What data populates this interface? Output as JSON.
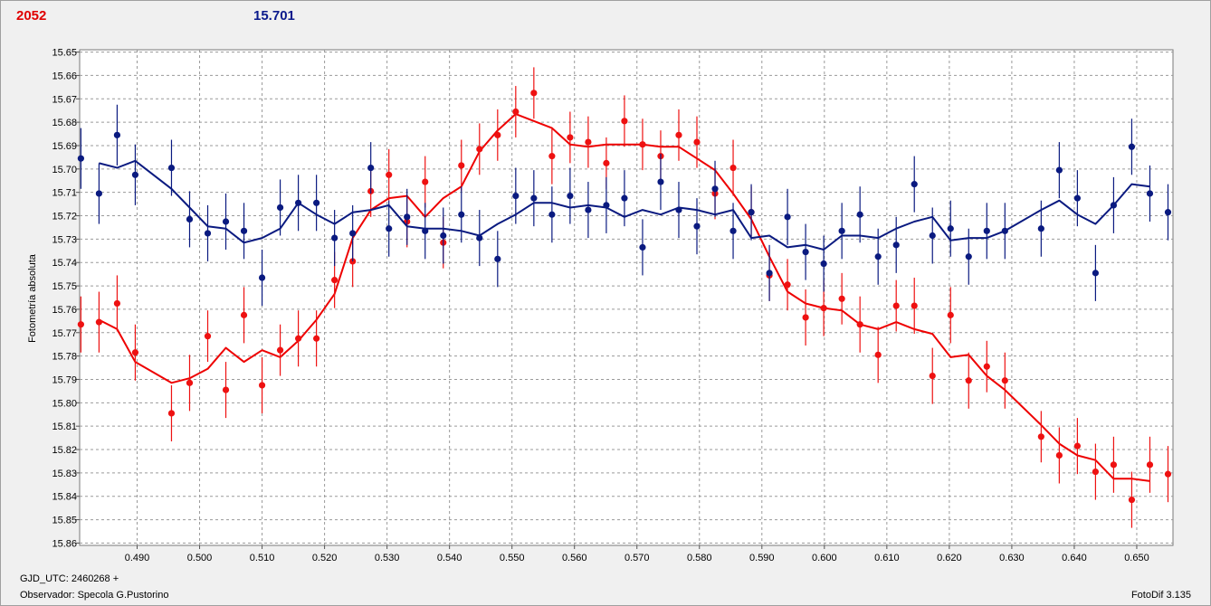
{
  "header": {
    "object_id": "2052",
    "magnitude": "15.701"
  },
  "footer": {
    "epoch_label": "GJD_UTC: 2460268 +",
    "observer_label": "Observador: Specola G.Pustorino",
    "software_label": "FotoDif 3.135"
  },
  "colors": {
    "red_series": "#ee1111",
    "blue_series": "#0a1a80",
    "grid": "#9a9a9a"
  },
  "chart_data": {
    "type": "scatter",
    "ylabel": "Fotometría absoluta",
    "xlabel": "",
    "xlim": [
      0.4808,
      0.6558
    ],
    "ylim": [
      15.649,
      15.861
    ],
    "y_inverted": true,
    "grid": true,
    "x_ticks": [
      "0.490",
      "0.500",
      "0.510",
      "0.520",
      "0.530",
      "0.540",
      "0.550",
      "0.560",
      "0.570",
      "0.580",
      "0.590",
      "0.600",
      "0.610",
      "0.620",
      "0.630",
      "0.640",
      "0.650"
    ],
    "y_ticks": [
      "15.65",
      "15.66",
      "15.67",
      "15.68",
      "15.69",
      "15.70",
      "15.71",
      "15.72",
      "15.73",
      "15.74",
      "15.75",
      "15.76",
      "15.77",
      "15.78",
      "15.79",
      "15.80",
      "15.81",
      "15.82",
      "15.83",
      "15.84",
      "15.85",
      "15.86"
    ],
    "series": [
      {
        "color": "red",
        "x": [
          0.481,
          0.4839,
          0.4868,
          0.4897,
          0.4955,
          0.4984,
          0.5013,
          0.5042,
          0.5071,
          0.51,
          0.5129,
          0.5158,
          0.5187,
          0.5216,
          0.5245,
          0.5274,
          0.5303,
          0.5332,
          0.5361,
          0.539,
          0.5419,
          0.5448,
          0.5477,
          0.5506,
          0.5535,
          0.5564,
          0.5593,
          0.5622,
          0.5651,
          0.568,
          0.5709,
          0.5738,
          0.5767,
          0.5796,
          0.5825,
          0.5854,
          0.5883,
          0.5912,
          0.5941,
          0.597,
          0.5999,
          0.6028,
          0.6057,
          0.6086,
          0.6115,
          0.6144,
          0.6173,
          0.6202,
          0.6231,
          0.626,
          0.6289,
          0.6347,
          0.6376,
          0.6405,
          0.6434,
          0.6463,
          0.6492,
          0.6521,
          0.655
        ],
        "y": [
          15.7665,
          15.7655,
          15.7575,
          15.7785,
          15.8045,
          15.7915,
          15.7715,
          15.7945,
          15.7625,
          15.7925,
          15.7775,
          15.7725,
          15.7725,
          15.7475,
          15.7395,
          15.7095,
          15.7025,
          15.7225,
          15.7055,
          15.7315,
          15.6985,
          15.6915,
          15.6855,
          15.6755,
          15.6675,
          15.6945,
          15.6865,
          15.6885,
          15.6975,
          15.6795,
          15.6895,
          15.6945,
          15.6855,
          15.6885,
          15.7105,
          15.6995,
          15.7185,
          15.7455,
          15.7495,
          15.7635,
          15.7595,
          15.7555,
          15.7665,
          15.7795,
          15.7585,
          15.7585,
          15.7885,
          15.7625,
          15.7905,
          15.7845,
          15.7905,
          15.8145,
          15.8225,
          15.8185,
          15.8295,
          15.8265,
          15.8415,
          15.8265,
          15.8305
        ],
        "err": [
          0.012,
          0.013,
          0.012,
          0.012,
          0.012,
          0.012,
          0.011,
          0.012,
          0.012,
          0.012,
          0.011,
          0.012,
          0.012,
          0.012,
          0.011,
          0.011,
          0.011,
          0.011,
          0.011,
          0.011,
          0.011,
          0.011,
          0.011,
          0.011,
          0.011,
          0.012,
          0.011,
          0.011,
          0.011,
          0.011,
          0.011,
          0.011,
          0.011,
          0.011,
          0.011,
          0.012,
          0.011,
          0.011,
          0.011,
          0.012,
          0.012,
          0.011,
          0.012,
          0.012,
          0.011,
          0.012,
          0.012,
          0.012,
          0.012,
          0.011,
          0.012,
          0.011,
          0.012,
          0.012,
          0.012,
          0.012,
          0.012,
          0.012,
          0.012
        ],
        "smooth": [
          null,
          15.7645,
          15.7685,
          15.7825,
          15.7915,
          15.7895,
          15.7855,
          15.7765,
          15.7825,
          15.7775,
          15.7805,
          15.7735,
          15.7645,
          15.7535,
          15.7295,
          15.7175,
          15.7125,
          15.7115,
          15.7205,
          15.7125,
          15.7075,
          15.6925,
          15.6835,
          15.6765,
          15.6795,
          15.6825,
          15.6895,
          15.6905,
          15.6895,
          15.6895,
          15.6895,
          15.6905,
          15.6905,
          15.6955,
          15.7005,
          15.7105,
          15.7215,
          15.7375,
          15.7525,
          15.7575,
          15.7595,
          15.7605,
          15.7665,
          15.7685,
          15.7655,
          15.7685,
          15.7705,
          15.7805,
          15.7795,
          15.7885,
          15.7945,
          15.8095,
          15.8175,
          15.8225,
          15.8245,
          15.8325,
          15.8325,
          15.8335,
          null
        ]
      },
      {
        "color": "blue",
        "x": [
          0.481,
          0.4839,
          0.4868,
          0.4897,
          0.4955,
          0.4984,
          0.5013,
          0.5042,
          0.5071,
          0.51,
          0.5129,
          0.5158,
          0.5187,
          0.5216,
          0.5245,
          0.5274,
          0.5303,
          0.5332,
          0.5361,
          0.539,
          0.5419,
          0.5448,
          0.5477,
          0.5506,
          0.5535,
          0.5564,
          0.5593,
          0.5622,
          0.5651,
          0.568,
          0.5709,
          0.5738,
          0.5767,
          0.5796,
          0.5825,
          0.5854,
          0.5883,
          0.5912,
          0.5941,
          0.597,
          0.5999,
          0.6028,
          0.6057,
          0.6086,
          0.6115,
          0.6144,
          0.6173,
          0.6202,
          0.6231,
          0.626,
          0.6289,
          0.6347,
          0.6376,
          0.6405,
          0.6434,
          0.6463,
          0.6492,
          0.6521,
          0.655
        ],
        "y": [
          15.6955,
          15.7105,
          15.6855,
          15.7025,
          15.6995,
          15.7215,
          15.7275,
          15.7225,
          15.7265,
          15.7465,
          15.7165,
          15.7145,
          15.7145,
          15.7295,
          15.7275,
          15.6995,
          15.7255,
          15.7205,
          15.7265,
          15.7285,
          15.7195,
          15.7295,
          15.7385,
          15.7115,
          15.7125,
          15.7195,
          15.7115,
          15.7175,
          15.7155,
          15.7125,
          15.7335,
          15.7055,
          15.7175,
          15.7245,
          15.7085,
          15.7265,
          15.7185,
          15.7445,
          15.7205,
          15.7355,
          15.7405,
          15.7265,
          15.7195,
          15.7375,
          15.7325,
          15.7065,
          15.7285,
          15.7255,
          15.7375,
          15.7265,
          15.7265,
          15.7255,
          15.7005,
          15.7125,
          15.7445,
          15.7155,
          15.6905,
          15.7105,
          15.7185
        ],
        "err": [
          0.013,
          0.013,
          0.013,
          0.013,
          0.012,
          0.012,
          0.012,
          0.012,
          0.012,
          0.012,
          0.012,
          0.012,
          0.012,
          0.012,
          0.012,
          0.011,
          0.012,
          0.012,
          0.012,
          0.012,
          0.012,
          0.012,
          0.012,
          0.012,
          0.012,
          0.012,
          0.012,
          0.012,
          0.012,
          0.012,
          0.012,
          0.012,
          0.012,
          0.012,
          0.012,
          0.012,
          0.012,
          0.012,
          0.012,
          0.012,
          0.012,
          0.012,
          0.012,
          0.012,
          0.012,
          0.012,
          0.012,
          0.012,
          0.012,
          0.012,
          0.012,
          0.012,
          0.012,
          0.012,
          0.012,
          0.012,
          0.012,
          0.012,
          0.012
        ],
        "smooth": [
          null,
          15.6975,
          15.6995,
          15.6965,
          15.7085,
          15.7165,
          15.7245,
          15.7255,
          15.7315,
          15.7295,
          15.7255,
          15.7145,
          15.7195,
          15.7235,
          15.7185,
          15.7175,
          15.7155,
          15.7245,
          15.7255,
          15.7255,
          15.7265,
          15.7285,
          15.7235,
          15.7195,
          15.7145,
          15.7145,
          15.7165,
          15.7155,
          15.7165,
          15.7205,
          15.7175,
          15.7195,
          15.7165,
          15.7175,
          15.7195,
          15.7175,
          15.7295,
          15.7285,
          15.7335,
          15.7325,
          15.7345,
          15.7285,
          15.7285,
          15.7295,
          15.7255,
          15.7225,
          15.7205,
          15.7305,
          15.7295,
          15.7295,
          15.7265,
          15.7175,
          15.7135,
          15.7195,
          15.7235,
          15.7155,
          15.7065,
          15.7075,
          null
        ]
      }
    ]
  }
}
